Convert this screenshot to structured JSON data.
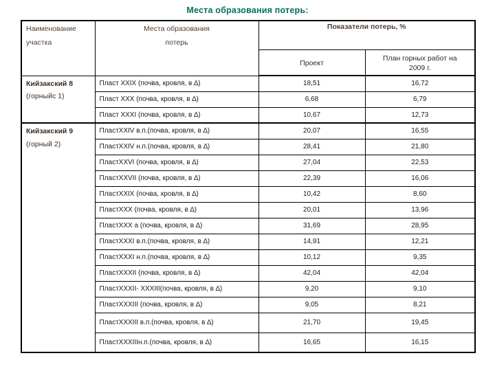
{
  "page": {
    "title": "Места образования потерь:"
  },
  "colors": {
    "title_text": "#00705f",
    "header_text": "#4f3b2f",
    "site_text": "#3c2c22",
    "body_text": "#1a1a1a",
    "border": "#000000",
    "background": "#ffffff"
  },
  "table": {
    "headers": {
      "col_site": "Наименование\nучастка",
      "col_place": "Места образования\nпотерь",
      "col_indicators": "Показатели потерь, %",
      "sub_project": "Проект",
      "sub_plan": "План горных работ на\n2009 г."
    },
    "groups": [
      {
        "site": "Кийзакский 8",
        "site_note": "(горныйс 1)",
        "rows": [
          {
            "place": "Пласт XXIX (почва, кровля,  в ∆)",
            "project": "18,51",
            "plan": "16,72"
          },
          {
            "place": "Пласт XXX (почва, кровля,  в ∆)",
            "project": "6,68",
            "plan": "6,79"
          },
          {
            "place": "Пласт XXXI (почва, кровля,  в ∆)",
            "project": "10,67",
            "plan": "12,73"
          }
        ]
      },
      {
        "site": "Кийзакский 9",
        "site_note": "(горный 2)",
        "rows": [
          {
            "place": "ПластXXIV в.п.(почва, кровля, в ∆)",
            "project": "20,07",
            "plan": "16,55"
          },
          {
            "place": "ПластXXIV н.п.(почва, кровля, в ∆)",
            "project": "28,41",
            "plan": "21,80"
          },
          {
            "place": "ПластXXVI (почва, кровля, в ∆)",
            "project": "27,04",
            "plan": "22,53"
          },
          {
            "place": "ПластXXVII (почва, кровля, в ∆)",
            "project": "22,39",
            "plan": "16,06"
          },
          {
            "place": "ПластXXIX (почва, кровля, в ∆)",
            "project": "10,42",
            "plan": "8,60"
          },
          {
            "place": "ПластXXX (почва, кровля, в ∆)",
            "project": "20,01",
            "plan": "13,96"
          },
          {
            "place": "ПластXXX а (почва, кровля, в ∆)",
            "project": "31,69",
            "plan": "28,95"
          },
          {
            "place": "ПластXXXI в.п.(почва, кровля, в ∆)",
            "project": "14,91",
            "plan": "12,21"
          },
          {
            "place": "ПластXXXI н.п.(почва, кровля, в ∆)",
            "project": "10,12",
            "plan": "9,35"
          },
          {
            "place": "ПластXXXII (почва, кровля, в ∆)",
            "project": "42,04",
            "plan": "42,04"
          },
          {
            "place": "ПластXXXII- XXXIII(почва, кровля, в ∆)",
            "project": "9,20",
            "plan": "9,10"
          },
          {
            "place": "ПластXXXIII (почва, кровля, в ∆)",
            "project": "9,05",
            "plan": "8,21"
          },
          {
            "place": "ПластXXXIII в.п.(почва, кровля, в ∆)",
            "project": "21,70",
            "plan": "19,45"
          },
          {
            "place": "ПластXXXIIIн.п.(почва, кровля, в ∆)",
            "project": "16,65",
            "plan": "16,15"
          }
        ]
      }
    ]
  }
}
